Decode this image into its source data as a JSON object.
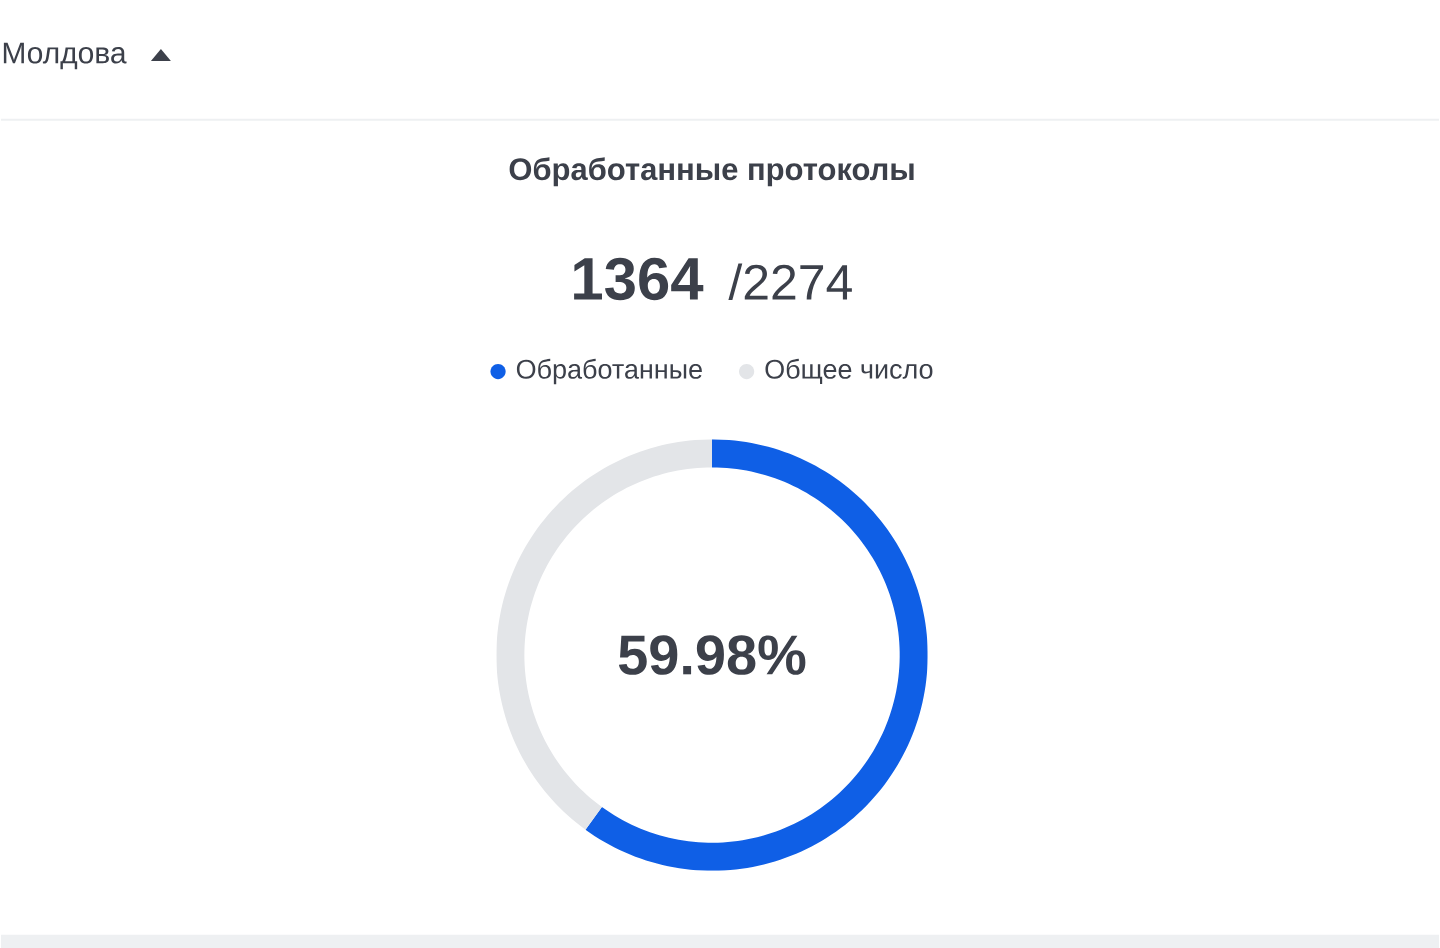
{
  "chart_data": {
    "type": "donut",
    "title": "Обработанные протоколы",
    "categories": [
      "Обработанные",
      "Общее число"
    ],
    "values": [
      59.98,
      40.02
    ],
    "colors": [
      "#0f5fe6",
      "#e3e5e8"
    ],
    "value_labels": [
      "59.98%",
      null
    ],
    "legend": "top",
    "annotations": [
      "Молдова",
      "1364",
      "/2274"
    ]
  }
}
